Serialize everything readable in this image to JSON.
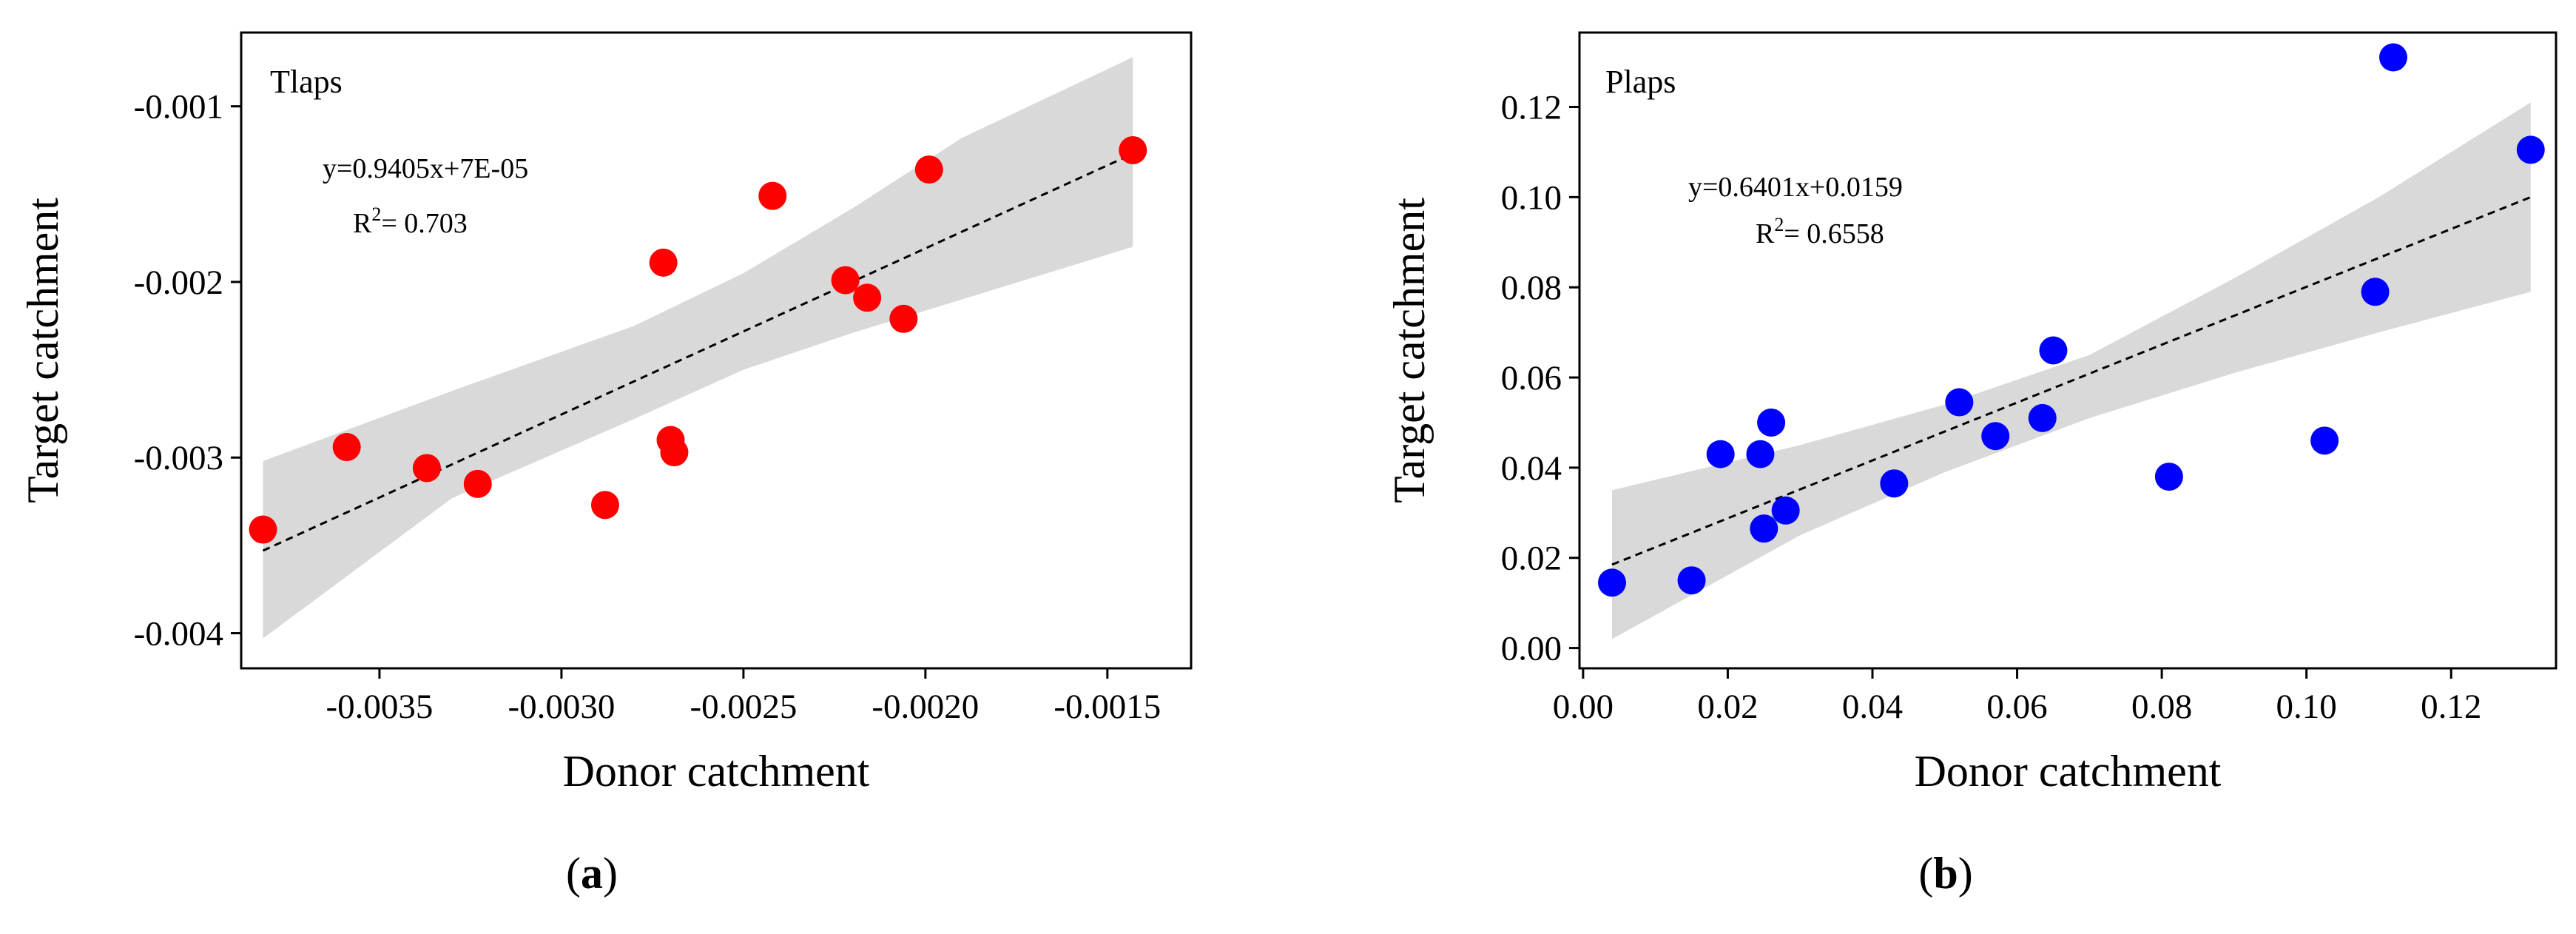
{
  "chart_data": [
    {
      "type": "scatter",
      "title": "Tlaps",
      "xlabel": "Donor catchment",
      "ylabel": "Target catchment",
      "caption_label": "a",
      "equation": "y=0.9405x+7E-05",
      "r2_prefix": "R",
      "r2_sup": "2",
      "r2_value": "= 0.703",
      "point_color": "#ff0000",
      "xlim": [
        -0.00388,
        -0.00127
      ],
      "ylim": [
        -0.0042,
        -0.00058
      ],
      "xticks": [
        -0.0035,
        -0.003,
        -0.0025,
        -0.002,
        -0.0015
      ],
      "xtick_labels": [
        "-0.0035",
        "-0.0030",
        "-0.0025",
        "-0.0020",
        "-0.0015"
      ],
      "yticks": [
        -0.004,
        -0.003,
        -0.002,
        -0.001
      ],
      "ytick_labels": [
        "-0.004",
        "-0.003",
        "-0.002",
        "-0.001"
      ],
      "fit": {
        "x0": -0.00382,
        "y0": -0.00353,
        "x1": -0.00143,
        "y1": -0.00127
      },
      "band_upper": [
        [
          -0.00382,
          -0.00302
        ],
        [
          -0.0033,
          -0.00262
        ],
        [
          -0.0028,
          -0.00225
        ],
        [
          -0.0025,
          -0.00195
        ],
        [
          -0.0022,
          -0.00158
        ],
        [
          -0.0019,
          -0.00118
        ],
        [
          -0.00143,
          -0.00072
        ]
      ],
      "band_lower": [
        [
          -0.00382,
          -0.00403
        ],
        [
          -0.0033,
          -0.00323
        ],
        [
          -0.0028,
          -0.00278
        ],
        [
          -0.0025,
          -0.0025
        ],
        [
          -0.0022,
          -0.00229
        ],
        [
          -0.0019,
          -0.0021
        ],
        [
          -0.00143,
          -0.0018
        ]
      ],
      "x": [
        -0.00382,
        -0.00359,
        -0.00337,
        -0.00323,
        -0.00288,
        -0.00272,
        -0.0027,
        -0.00269,
        -0.00242,
        -0.00222,
        -0.00216,
        -0.00206,
        -0.00199,
        -0.00143
      ],
      "y": [
        -0.00341,
        -0.00294,
        -0.00306,
        -0.00315,
        -0.00327,
        -0.00189,
        -0.0029,
        -0.00297,
        -0.00151,
        -0.00199,
        -0.00209,
        -0.00221,
        -0.00136,
        -0.00125
      ]
    },
    {
      "type": "scatter",
      "title": "Plaps",
      "xlabel": "Donor catchment",
      "ylabel": "Target catchment",
      "caption_label": "b",
      "equation": "y=0.6401x+0.0159",
      "r2_prefix": "R",
      "r2_sup": "2",
      "r2_value": "= 0.6558",
      "point_color": "#0000ff",
      "xlim": [
        -0.0005,
        0.1345
      ],
      "ylim": [
        -0.0045,
        0.1365
      ],
      "xticks": [
        0.0,
        0.02,
        0.04,
        0.06,
        0.08,
        0.1,
        0.12
      ],
      "xtick_labels": [
        "0.00",
        "0.02",
        "0.04",
        "0.06",
        "0.08",
        "0.10",
        "0.12"
      ],
      "yticks": [
        0.0,
        0.02,
        0.04,
        0.06,
        0.08,
        0.1,
        0.12
      ],
      "ytick_labels": [
        "0.00",
        "0.02",
        "0.04",
        "0.06",
        "0.08",
        "0.10",
        "0.12"
      ],
      "fit": {
        "x0": 0.004,
        "y0": 0.0185,
        "x1": 0.131,
        "y1": 0.1
      },
      "band_upper": [
        [
          0.004,
          0.035
        ],
        [
          0.03,
          0.045
        ],
        [
          0.05,
          0.054
        ],
        [
          0.07,
          0.065
        ],
        [
          0.09,
          0.082
        ],
        [
          0.11,
          0.1
        ],
        [
          0.131,
          0.121
        ]
      ],
      "band_lower": [
        [
          0.004,
          0.002
        ],
        [
          0.03,
          0.025
        ],
        [
          0.05,
          0.039
        ],
        [
          0.07,
          0.051
        ],
        [
          0.09,
          0.061
        ],
        [
          0.11,
          0.07
        ],
        [
          0.131,
          0.079
        ]
      ],
      "x": [
        0.004,
        0.015,
        0.019,
        0.0245,
        0.025,
        0.026,
        0.028,
        0.043,
        0.052,
        0.057,
        0.0635,
        0.065,
        0.081,
        0.1025,
        0.1095,
        0.112,
        0.131
      ],
      "y": [
        0.0145,
        0.015,
        0.043,
        0.043,
        0.0265,
        0.05,
        0.0305,
        0.0365,
        0.0545,
        0.047,
        0.051,
        0.066,
        0.038,
        0.046,
        0.079,
        0.131,
        0.1105
      ]
    }
  ]
}
